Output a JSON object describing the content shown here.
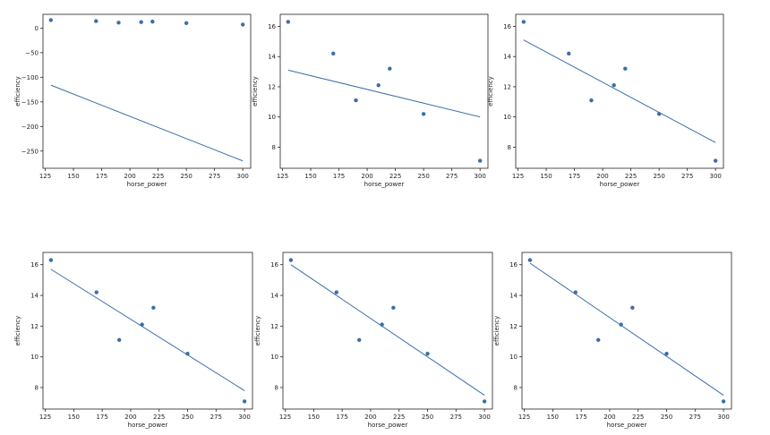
{
  "chart_data": [
    {
      "type": "scatter",
      "xlabel": "horse_power",
      "ylabel": "efficiency",
      "xlim": [
        123,
        307
      ],
      "ylim": [
        -285,
        28
      ],
      "xticks": [
        125,
        150,
        175,
        200,
        225,
        250,
        275,
        300
      ],
      "yticks": [
        0,
        -50,
        -100,
        -150,
        -200,
        -250
      ],
      "points": {
        "x": [
          130,
          170,
          190,
          210,
          220,
          250,
          300
        ],
        "y": [
          16.3,
          14.2,
          11.1,
          12.1,
          13.2,
          10.2,
          7.1
        ]
      },
      "fit_line": {
        "x": [
          130,
          300
        ],
        "y": [
          -116,
          -270
        ]
      },
      "grid": false
    },
    {
      "type": "scatter",
      "xlabel": "horse_power",
      "ylabel": "efficiency",
      "xlim": [
        123,
        307
      ],
      "ylim": [
        6.6,
        16.8
      ],
      "xticks": [
        125,
        150,
        175,
        200,
        225,
        250,
        275,
        300
      ],
      "yticks": [
        8,
        10,
        12,
        14,
        16
      ],
      "points": {
        "x": [
          130,
          170,
          190,
          210,
          220,
          250,
          300
        ],
        "y": [
          16.3,
          14.2,
          11.1,
          12.1,
          13.2,
          10.2,
          7.1
        ]
      },
      "fit_line": {
        "x": [
          130,
          300
        ],
        "y": [
          13.1,
          10.0
        ]
      },
      "grid": false
    },
    {
      "type": "scatter",
      "xlabel": "horse_power",
      "ylabel": "efficiency",
      "xlim": [
        123,
        307
      ],
      "ylim": [
        6.6,
        16.8
      ],
      "xticks": [
        125,
        150,
        175,
        200,
        225,
        250,
        275,
        300
      ],
      "yticks": [
        8,
        10,
        12,
        14,
        16
      ],
      "points": {
        "x": [
          130,
          170,
          190,
          210,
          220,
          250,
          300
        ],
        "y": [
          16.3,
          14.2,
          11.1,
          12.1,
          13.2,
          10.2,
          7.1
        ]
      },
      "fit_line": {
        "x": [
          130,
          300
        ],
        "y": [
          15.1,
          8.3
        ]
      },
      "grid": false
    },
    {
      "type": "scatter",
      "xlabel": "horse_power",
      "ylabel": "efficiency",
      "xlim": [
        123,
        307
      ],
      "ylim": [
        6.6,
        16.8
      ],
      "xticks": [
        125,
        150,
        175,
        200,
        225,
        250,
        275,
        300
      ],
      "yticks": [
        8,
        10,
        12,
        14,
        16
      ],
      "points": {
        "x": [
          130,
          170,
          190,
          210,
          220,
          250,
          300
        ],
        "y": [
          16.3,
          14.2,
          11.1,
          12.1,
          13.2,
          10.2,
          7.1
        ]
      },
      "fit_line": {
        "x": [
          130,
          300
        ],
        "y": [
          15.7,
          7.8
        ]
      },
      "grid": false
    },
    {
      "type": "scatter",
      "xlabel": "horse_power",
      "ylabel": "efficiency",
      "xlim": [
        123,
        307
      ],
      "ylim": [
        6.6,
        16.8
      ],
      "xticks": [
        125,
        150,
        175,
        200,
        225,
        250,
        275,
        300
      ],
      "yticks": [
        8,
        10,
        12,
        14,
        16
      ],
      "points": {
        "x": [
          130,
          170,
          190,
          210,
          220,
          250,
          300
        ],
        "y": [
          16.3,
          14.2,
          11.1,
          12.1,
          13.2,
          10.2,
          7.1
        ]
      },
      "fit_line": {
        "x": [
          130,
          300
        ],
        "y": [
          16.0,
          7.5
        ]
      },
      "grid": false
    },
    {
      "type": "scatter",
      "xlabel": "horse_power",
      "ylabel": "efficiency",
      "xlim": [
        123,
        307
      ],
      "ylim": [
        6.6,
        16.8
      ],
      "xticks": [
        125,
        150,
        175,
        200,
        225,
        250,
        275,
        300
      ],
      "yticks": [
        8,
        10,
        12,
        14,
        16
      ],
      "points": {
        "x": [
          130,
          170,
          190,
          210,
          220,
          250,
          300
        ],
        "y": [
          16.3,
          14.2,
          11.1,
          12.1,
          13.2,
          10.2,
          7.1
        ]
      },
      "fit_line": {
        "x": [
          130,
          300
        ],
        "y": [
          16.1,
          7.5
        ]
      },
      "grid": false
    }
  ],
  "colors": {
    "marker": "#3a6fa8",
    "line": "#3a6fa8",
    "axis": "#222222"
  }
}
